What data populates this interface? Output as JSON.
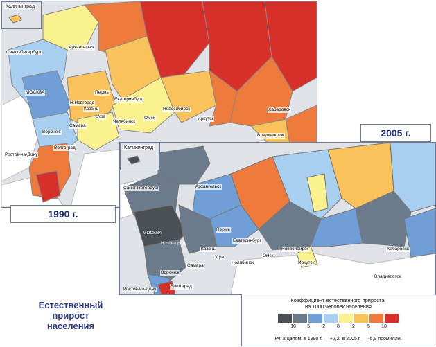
{
  "map_1990": {
    "year_label": "1990 г.",
    "inset_label": "Калининград",
    "cities": [
      {
        "name": "Санкт-Петербург"
      },
      {
        "name": "Архангельск"
      },
      {
        "name": "МОСКВА"
      },
      {
        "name": "Н.Новгород"
      },
      {
        "name": "Пермь"
      },
      {
        "name": "Екатеринбург"
      },
      {
        "name": "Казань"
      },
      {
        "name": "Уфа"
      },
      {
        "name": "Челябинск"
      },
      {
        "name": "Самара"
      },
      {
        "name": "Воронеж"
      },
      {
        "name": "Волгоград"
      },
      {
        "name": "Ростов-на-Дону"
      },
      {
        "name": "Новосибирск"
      },
      {
        "name": "Омск"
      },
      {
        "name": "Иркутск"
      },
      {
        "name": "Хабаровск"
      },
      {
        "name": "Владивосток"
      }
    ]
  },
  "map_2005": {
    "year_label": "2005 г.",
    "inset_label": "Калининград",
    "cities": [
      {
        "name": "Санкт-Петербург"
      },
      {
        "name": "Архангельск"
      },
      {
        "name": "МОСКВА"
      },
      {
        "name": "Н.Новгород"
      },
      {
        "name": "Пермь"
      },
      {
        "name": "Екатеринбург"
      },
      {
        "name": "Казань"
      },
      {
        "name": "Уфа"
      },
      {
        "name": "Челябинск"
      },
      {
        "name": "Самара"
      },
      {
        "name": "Воронеж"
      },
      {
        "name": "Волгоград"
      },
      {
        "name": "Ростов-на-Дону"
      },
      {
        "name": "Новосибирск"
      },
      {
        "name": "Омск"
      },
      {
        "name": "Иркутск"
      },
      {
        "name": "Хабаровск"
      },
      {
        "name": "Владивосток"
      }
    ]
  },
  "title_lines": [
    "Естественный",
    "прирост",
    "населения"
  ],
  "legend": {
    "caption_line1": "Коэффициент естественного прироста,",
    "caption_line2": "на 1000 человек населения",
    "ticks": [
      "-10",
      "-5",
      "-2",
      "0",
      "2",
      "5",
      "10"
    ],
    "colors": [
      "#4a5056",
      "#6b7b8c",
      "#6f9fd6",
      "#a8cff0",
      "#fbf18e",
      "#f9c25a",
      "#ee7a3c",
      "#d7302a"
    ],
    "note": "РФ в целом: в 1990 г. — +2,2; в 2005 г. — -5,9 промилле."
  },
  "palette": {
    "water": "#dfe3e8",
    "foreign": "#ffffff",
    "border": "#6f7a96"
  }
}
